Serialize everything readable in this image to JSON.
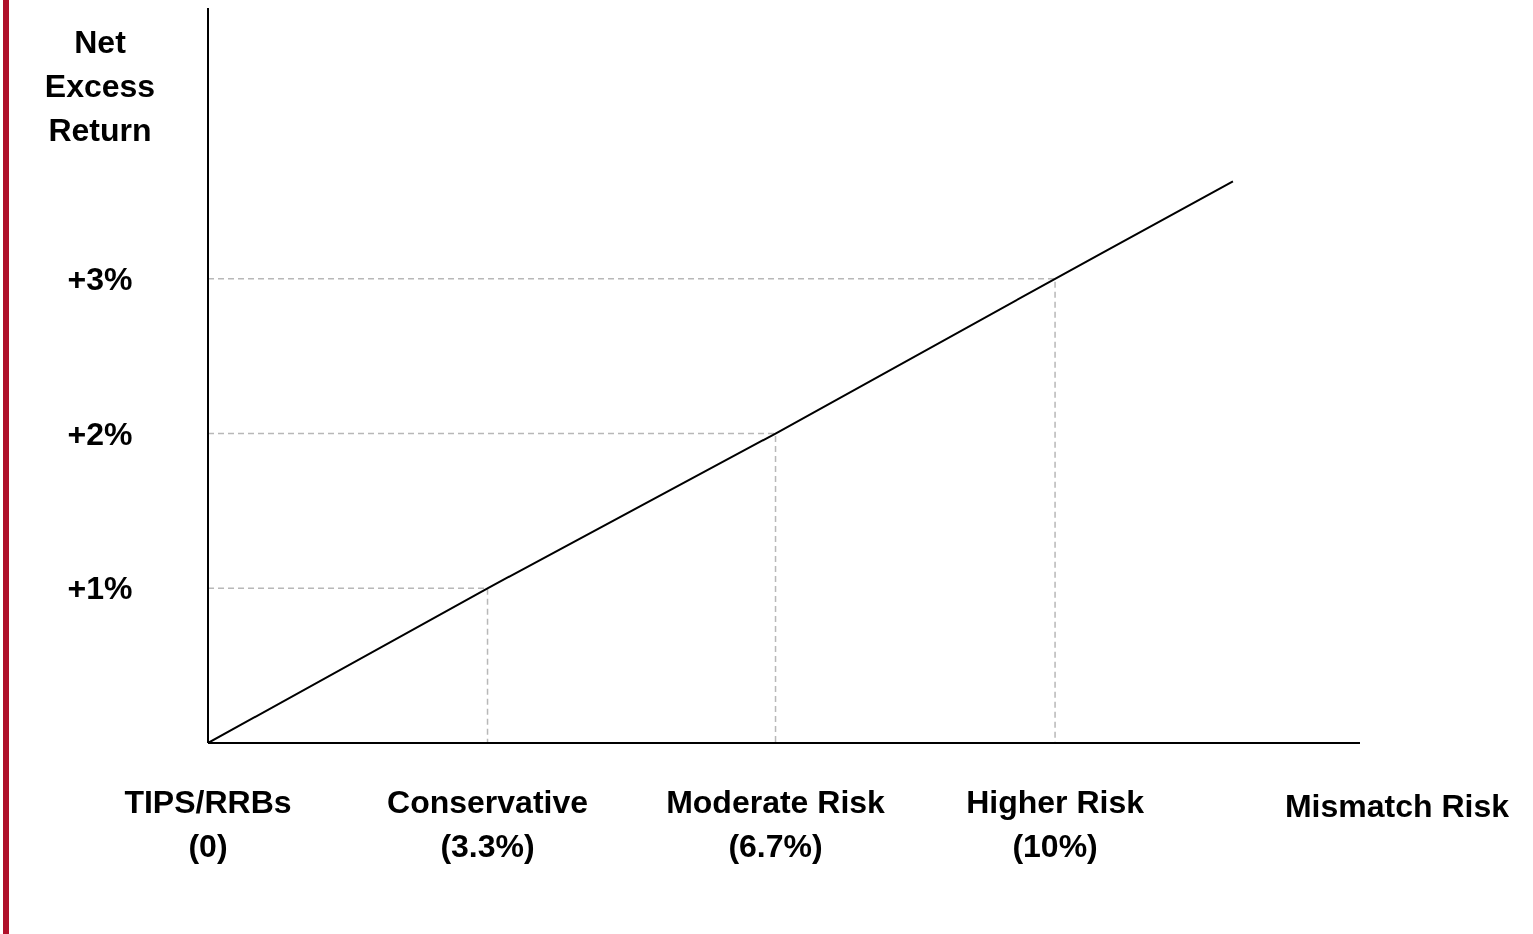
{
  "chart_data": {
    "type": "line",
    "xlabel": "Mismatch Risk",
    "ylabel": "Net Excess Return",
    "xlim": [
      0,
      13.6
    ],
    "ylim": [
      0,
      4.75
    ],
    "xticks": [
      {
        "value": 0,
        "label": "TIPS/RRBs\n(0)"
      },
      {
        "value": 3.3,
        "label": "Conservative\n(3.3%)"
      },
      {
        "value": 6.7,
        "label": "Moderate Risk\n(6.7%)"
      },
      {
        "value": 10,
        "label": "Higher Risk\n(10%)"
      }
    ],
    "yticks": [
      {
        "value": 1,
        "label": "+1%"
      },
      {
        "value": 2,
        "label": "+2%"
      },
      {
        "value": 3,
        "label": "+3%"
      }
    ],
    "marker": "none",
    "series": [
      {
        "color": "#b8b8b8",
        "line_style": "dashed",
        "x": [
          0,
          3.3,
          3.3
        ],
        "values": [
          1,
          1,
          0
        ]
      },
      {
        "color": "#b8b8b8",
        "line_style": "dashed",
        "x": [
          0,
          6.7,
          6.7
        ],
        "values": [
          2,
          2,
          0
        ]
      },
      {
        "color": "#b8b8b8",
        "line_style": "dashed",
        "x": [
          0,
          10,
          10
        ],
        "values": [
          3,
          3,
          0
        ]
      },
      {
        "color": "#000000",
        "x": [
          0,
          3.3,
          6.7,
          10,
          12.1
        ],
        "values": [
          0,
          1,
          2,
          3,
          3.63
        ]
      }
    ]
  }
}
